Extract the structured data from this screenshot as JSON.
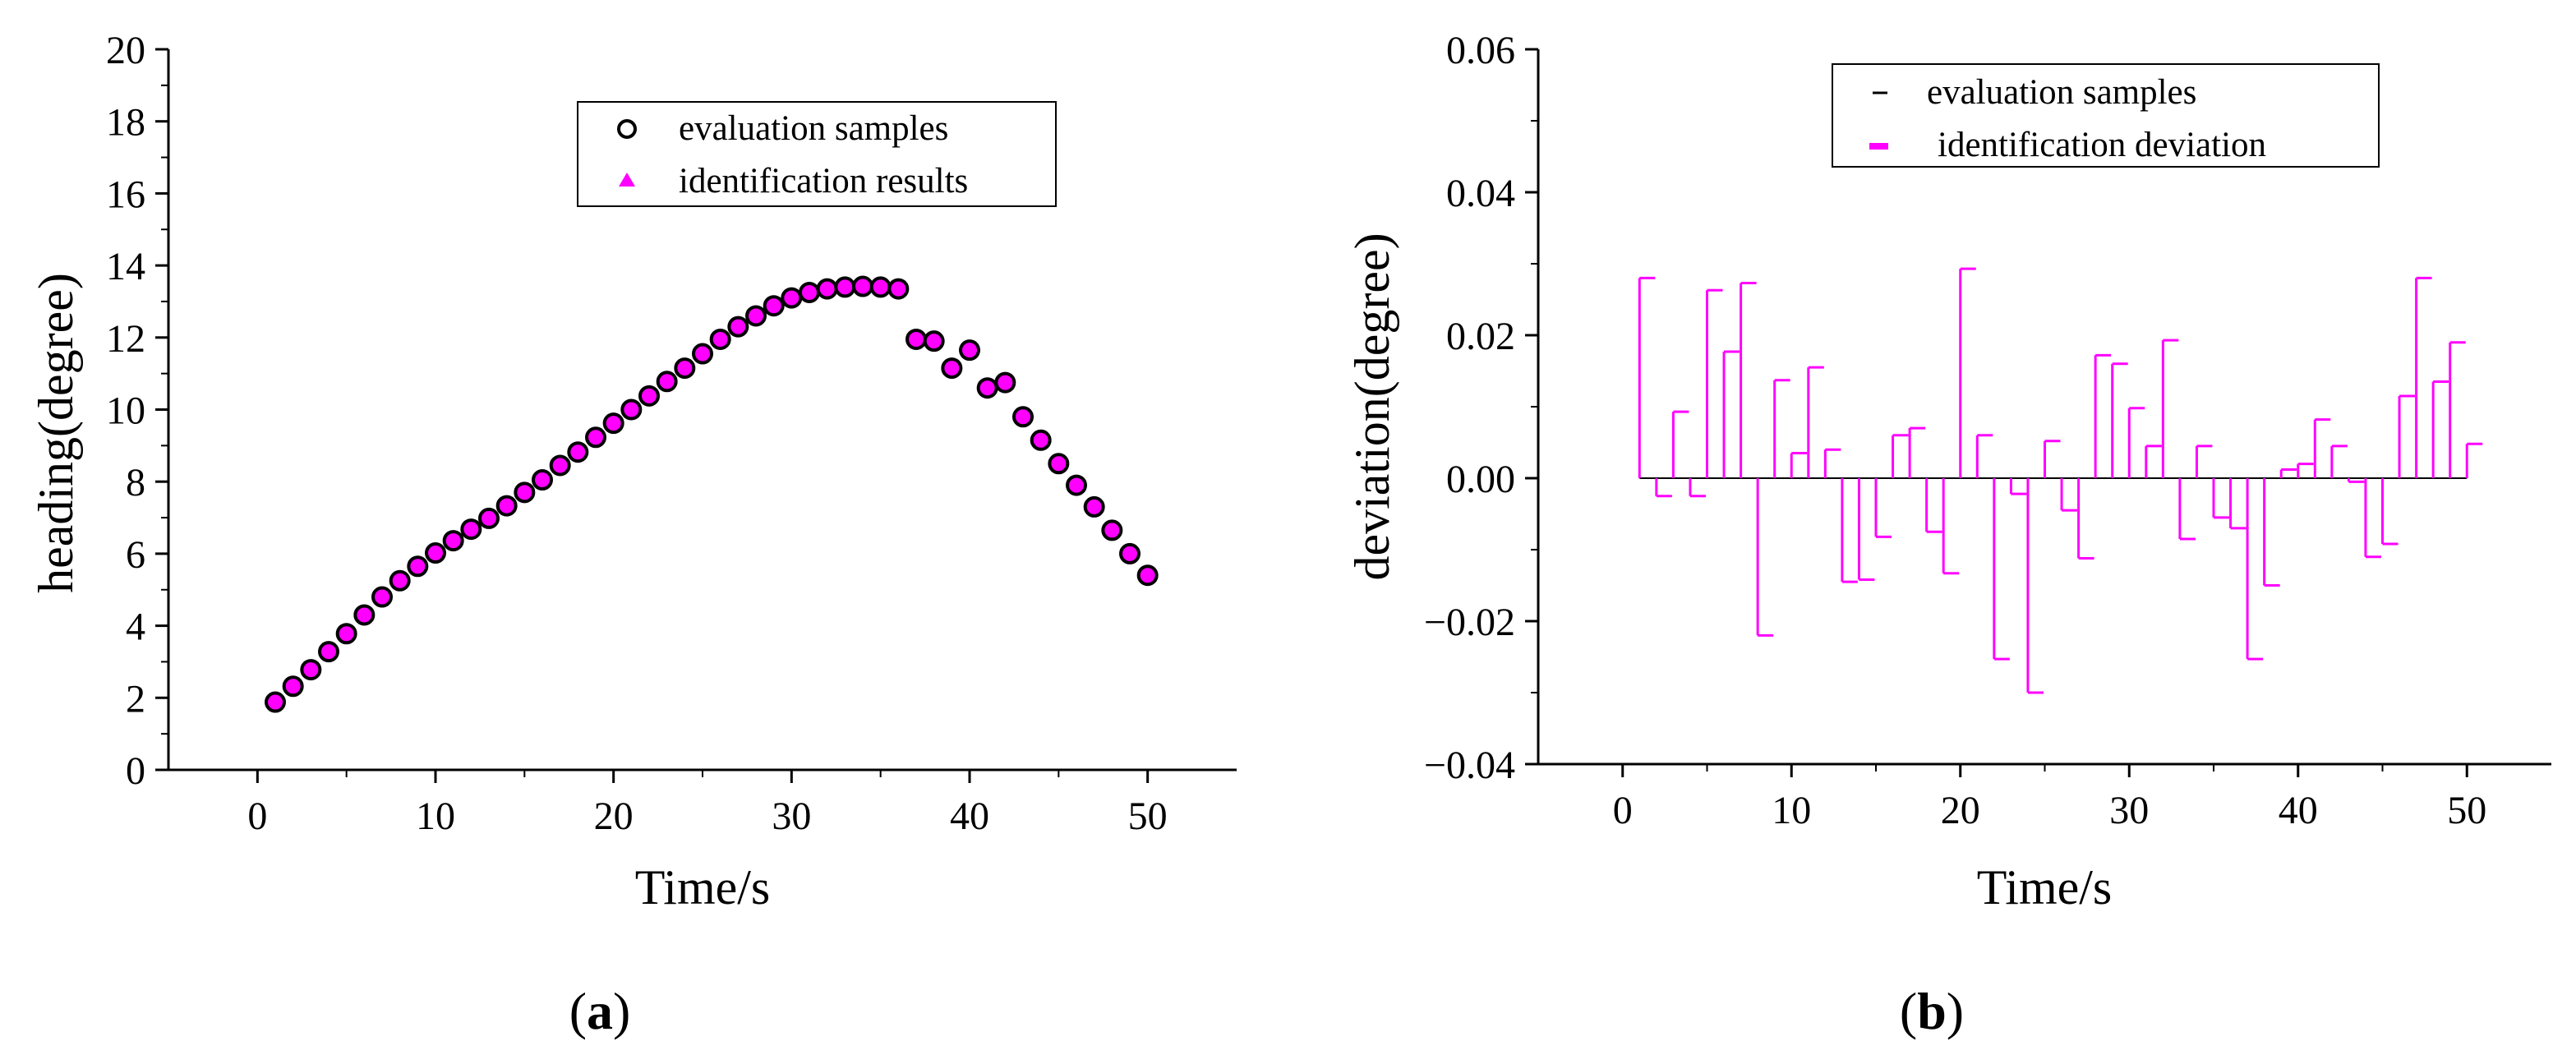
{
  "chart_data": [
    {
      "type": "scatter",
      "panel": "(a)",
      "panel_label": {
        "open": "(",
        "letter": "a",
        "close": ")"
      },
      "title": "",
      "xlabel": "Time/s",
      "ylabel": "heading(degree)",
      "xlim": [
        -5,
        55
      ],
      "ylim": [
        0,
        20
      ],
      "xticks": [
        "0",
        "10",
        "20",
        "30",
        "40",
        "50"
      ],
      "yticks": [
        "0",
        "2",
        "4",
        "6",
        "8",
        "10",
        "12",
        "14",
        "16",
        "18",
        "20"
      ],
      "legend": [
        "evaluation samples",
        "identification results"
      ],
      "legend_position": "top-right",
      "colors": {
        "samples_edge": "#000000",
        "results": "#ff00ff"
      },
      "series": [
        {
          "name": "evaluation samples",
          "x": [
            1,
            2,
            3,
            4,
            5,
            6,
            7,
            8,
            9,
            10,
            11,
            12,
            13,
            14,
            15,
            16,
            17,
            18,
            19,
            20,
            21,
            22,
            23,
            24,
            25,
            26,
            27,
            28,
            29,
            30,
            31,
            32,
            33,
            34,
            35,
            36,
            37,
            38,
            39,
            40,
            41,
            42,
            43,
            44,
            45,
            46,
            47,
            48,
            49,
            50
          ],
          "y": [
            1.88,
            2.32,
            2.78,
            3.28,
            3.78,
            4.3,
            4.8,
            5.25,
            5.65,
            6.02,
            6.36,
            6.68,
            6.98,
            7.33,
            7.7,
            8.05,
            8.45,
            8.82,
            9.23,
            9.62,
            10.0,
            10.38,
            10.78,
            11.15,
            11.55,
            11.95,
            12.3,
            12.6,
            12.88,
            13.1,
            13.25,
            13.35,
            13.4,
            13.42,
            13.4,
            13.35,
            11.95,
            11.9,
            11.15,
            11.65,
            10.6,
            10.75,
            9.8,
            9.15,
            8.5,
            7.9,
            7.3,
            6.65,
            6.0,
            5.4
          ]
        },
        {
          "name": "identification results",
          "x": [
            1,
            2,
            3,
            4,
            5,
            6,
            7,
            8,
            9,
            10,
            11,
            12,
            13,
            14,
            15,
            16,
            17,
            18,
            19,
            20,
            21,
            22,
            23,
            24,
            25,
            26,
            27,
            28,
            29,
            30,
            31,
            32,
            33,
            34,
            35,
            36,
            37,
            38,
            39,
            40,
            41,
            42,
            43,
            44,
            45,
            46,
            47,
            48,
            49,
            50
          ],
          "y": [
            1.88,
            2.32,
            2.78,
            3.28,
            3.78,
            4.3,
            4.8,
            5.25,
            5.65,
            6.02,
            6.36,
            6.68,
            6.98,
            7.33,
            7.7,
            8.05,
            8.45,
            8.82,
            9.23,
            9.62,
            10.0,
            10.38,
            10.78,
            11.15,
            11.55,
            11.95,
            12.3,
            12.6,
            12.88,
            13.1,
            13.25,
            13.35,
            13.4,
            13.42,
            13.4,
            13.35,
            11.95,
            11.9,
            11.15,
            11.65,
            10.6,
            10.75,
            9.8,
            9.15,
            8.5,
            7.9,
            7.3,
            6.65,
            6.0,
            5.4
          ]
        }
      ]
    },
    {
      "type": "bar",
      "panel": "(b)",
      "panel_label": {
        "open": "(",
        "letter": "b",
        "close": ")"
      },
      "title": "",
      "xlabel": "Time/s",
      "ylabel": "deviation(degree)",
      "xlim": [
        -5,
        55
      ],
      "ylim": [
        -0.04,
        0.06
      ],
      "xticks": [
        "0",
        "10",
        "20",
        "30",
        "40",
        "50"
      ],
      "yticks": [
        "−0.04",
        "−0.02",
        "0.00",
        "0.02",
        "0.04",
        "0.06"
      ],
      "legend": [
        "evaluation samples",
        "identification deviation"
      ],
      "legend_position": "top-right",
      "colors": {
        "samples": "#000000",
        "deviation": "#ff00ff"
      },
      "series": [
        {
          "name": "identification deviation",
          "x": [
            1,
            2,
            3,
            4,
            5,
            6,
            7,
            8,
            9,
            10,
            11,
            12,
            13,
            14,
            15,
            16,
            17,
            18,
            19,
            20,
            21,
            22,
            23,
            24,
            25,
            26,
            27,
            28,
            29,
            30,
            31,
            32,
            33,
            34,
            35,
            36,
            37,
            38,
            39,
            40,
            41,
            42,
            43,
            44,
            45,
            46,
            47,
            48,
            49,
            50
          ],
          "values": [
            0.028,
            -0.0025,
            0.0093,
            -0.0025,
            0.0263,
            0.0177,
            0.0273,
            -0.022,
            0.0137,
            0.0035,
            0.0155,
            0.004,
            -0.0145,
            -0.0142,
            -0.0082,
            0.006,
            0.007,
            -0.0075,
            -0.0133,
            0.0293,
            0.006,
            -0.0253,
            -0.0022,
            -0.03,
            0.0052,
            -0.0045,
            -0.0112,
            0.0172,
            0.016,
            0.0098,
            0.0045,
            0.0193,
            -0.0085,
            0.0045,
            -0.0055,
            -0.007,
            -0.0253,
            -0.015,
            0.0012,
            0.002,
            0.0082,
            0.0045,
            -0.0005,
            -0.011,
            -0.0092,
            0.0115,
            0.028,
            0.0135,
            0.019,
            0.0048
          ]
        }
      ]
    }
  ]
}
